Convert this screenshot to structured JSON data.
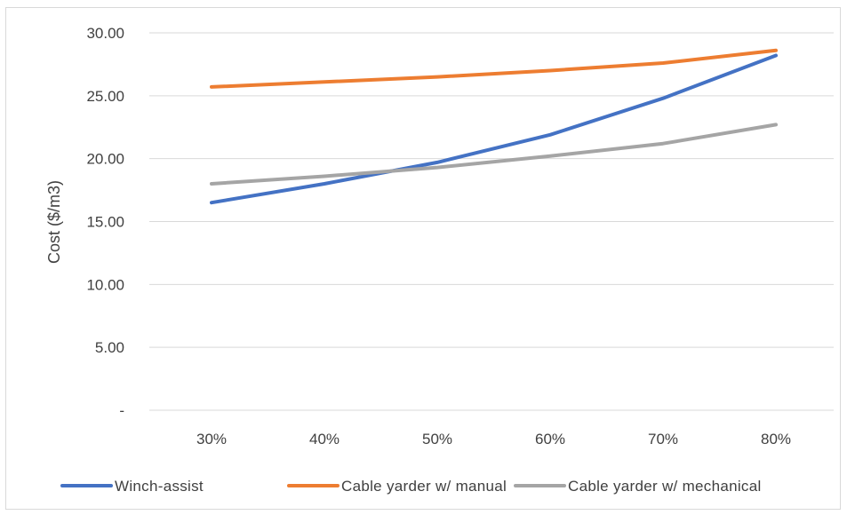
{
  "chart_data": {
    "type": "line",
    "title": "",
    "xlabel": "",
    "ylabel": "Cost ($/m3)",
    "categories": [
      "30%",
      "40%",
      "50%",
      "60%",
      "70%",
      "80%"
    ],
    "ylim": [
      0,
      30
    ],
    "yticks": [
      0,
      5,
      10,
      15,
      20,
      25,
      30
    ],
    "ytick_labels": [
      "-",
      "5.00",
      "10.00",
      "15.00",
      "20.00",
      "25.00",
      "30.00"
    ],
    "grid": true,
    "legend_position": "bottom",
    "series": [
      {
        "name": "Winch-assist",
        "color": "#4472c4",
        "values": [
          16.5,
          18.0,
          19.7,
          21.9,
          24.8,
          28.2
        ]
      },
      {
        "name": "Cable yarder w/ manual",
        "color": "#ed7d31",
        "values": [
          25.7,
          26.1,
          26.5,
          27.0,
          27.6,
          28.6
        ]
      },
      {
        "name": "Cable yarder w/ mechanical",
        "color": "#a5a5a5",
        "values": [
          18.0,
          18.6,
          19.3,
          20.2,
          21.2,
          22.7
        ]
      }
    ]
  }
}
